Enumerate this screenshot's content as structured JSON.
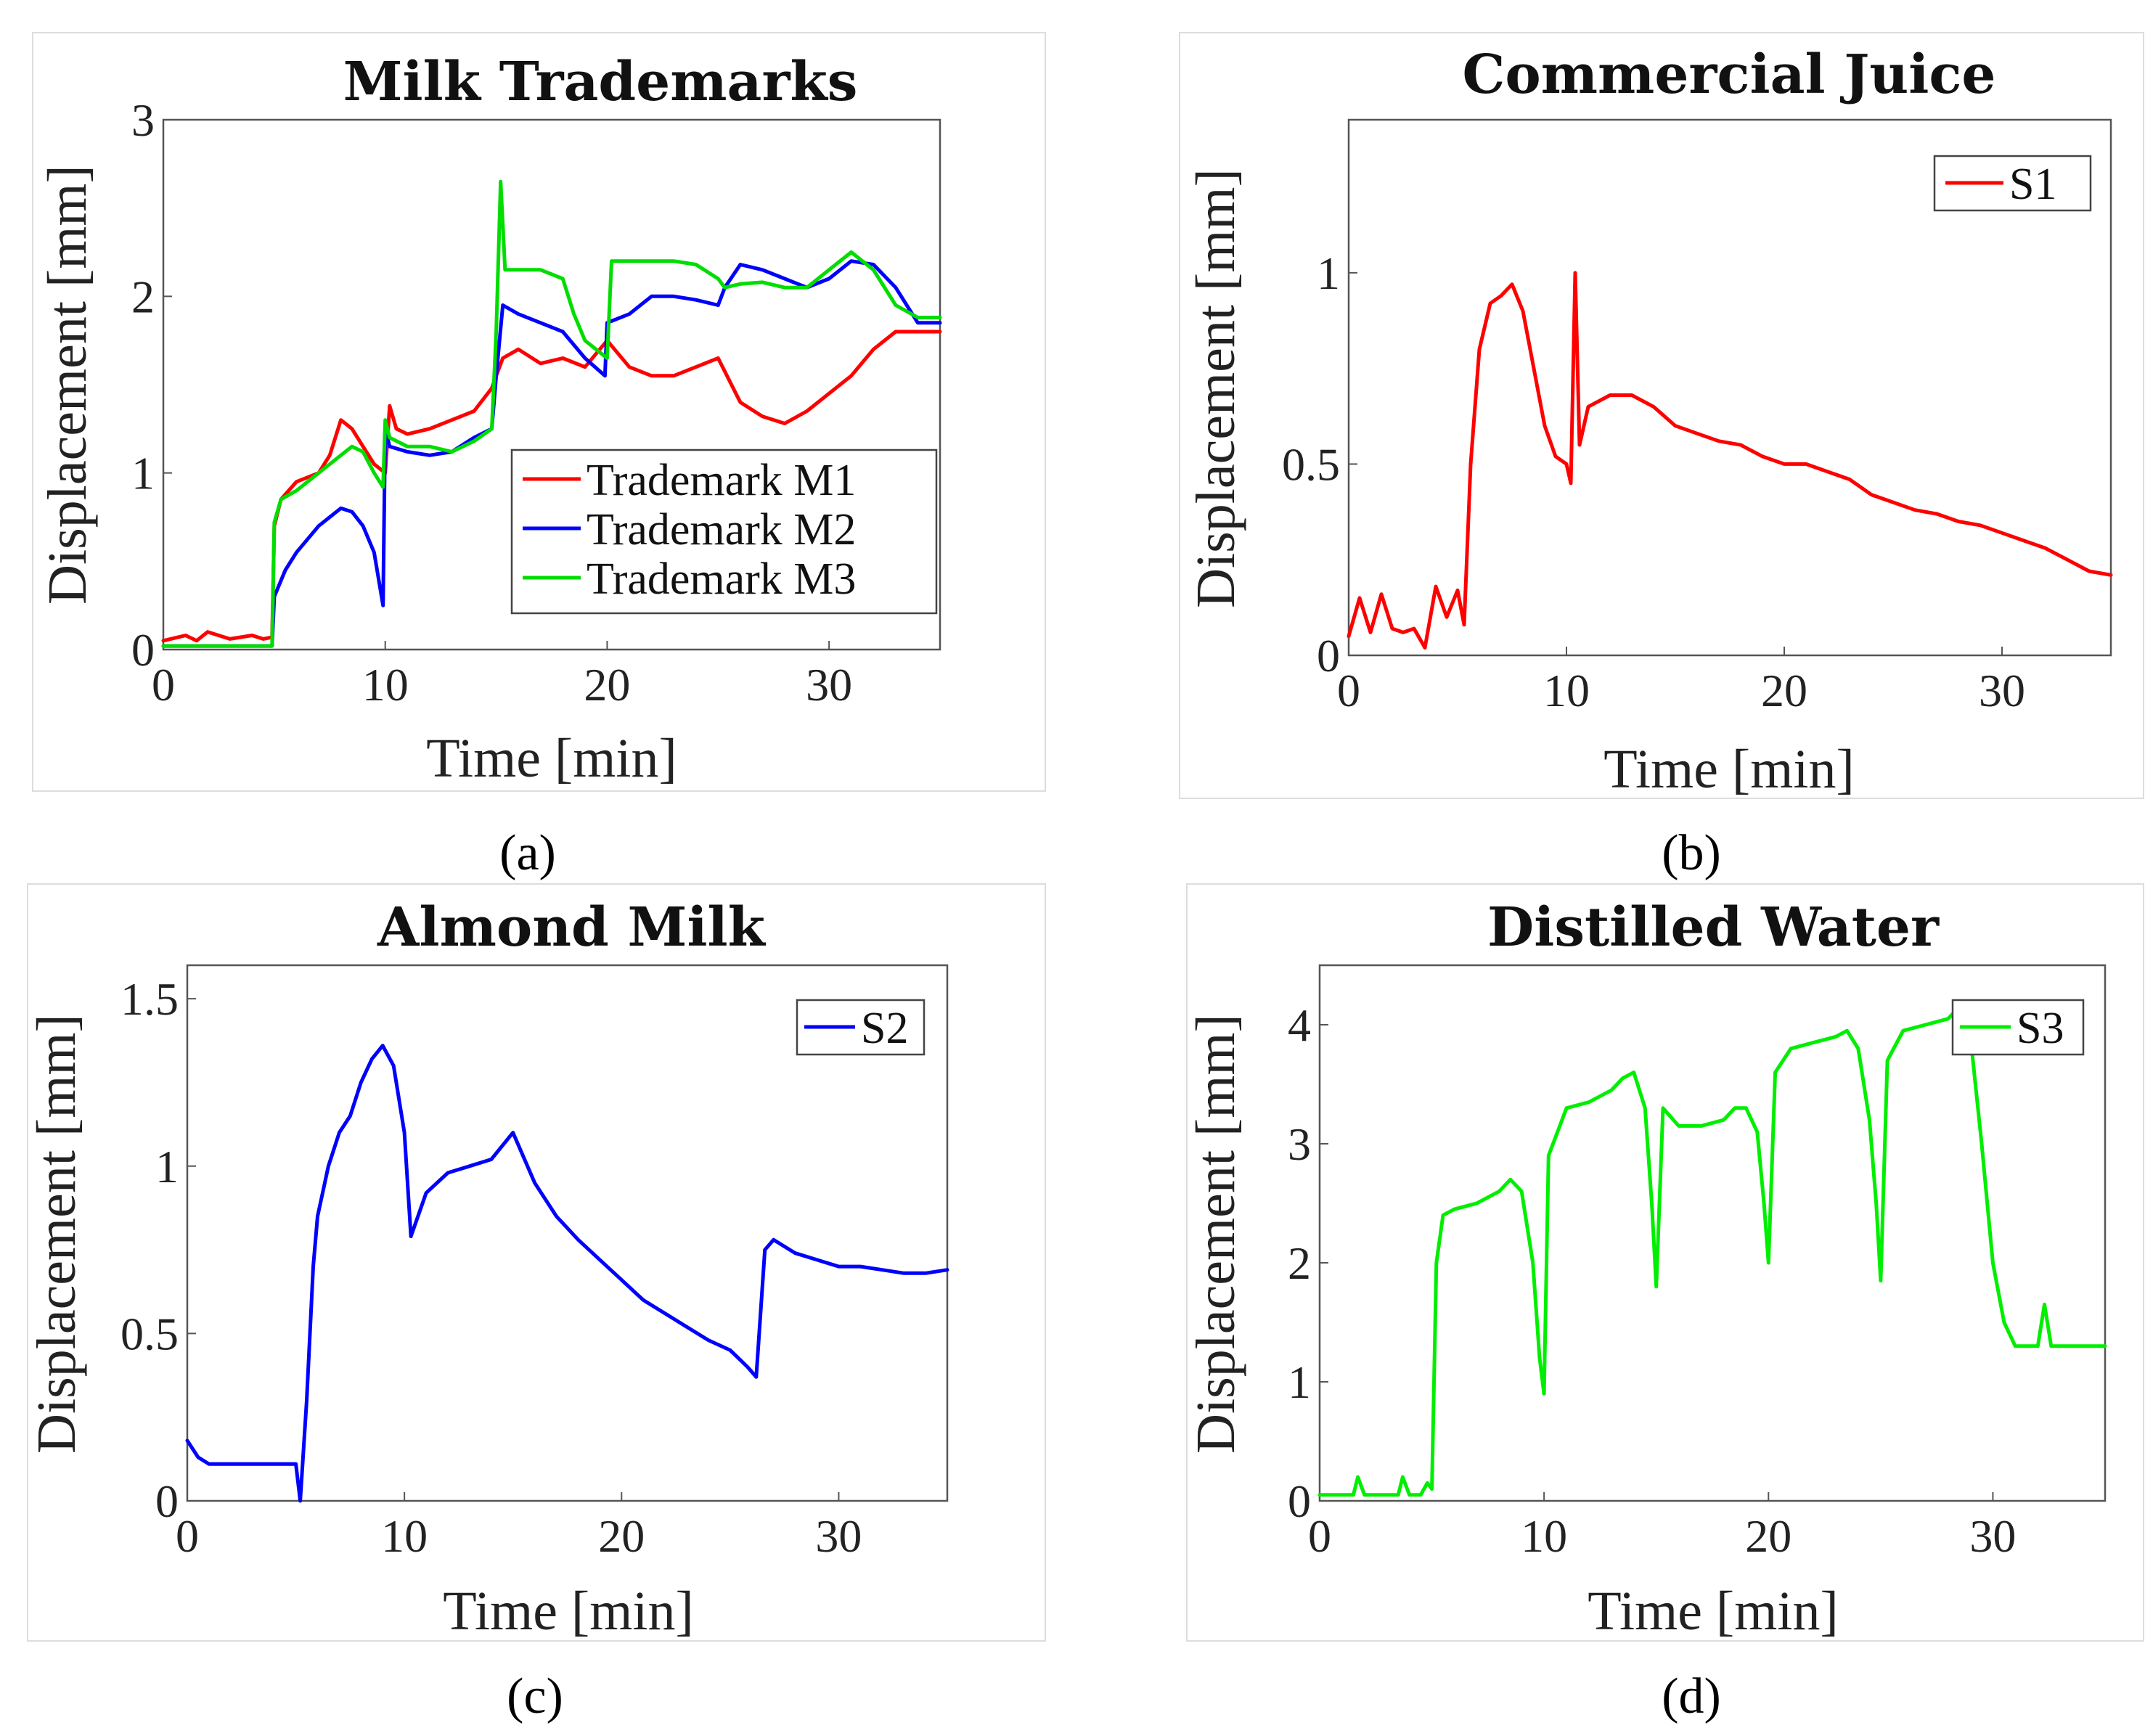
{
  "chart_data": [
    {
      "type": "line",
      "panel_label": "(a)",
      "title": "Milk Trademarks",
      "xlabel": "Time [min]",
      "ylabel": "Displacement [mm]",
      "xlim": [
        0,
        35
      ],
      "ylim": [
        0,
        3
      ],
      "xticks": [
        0,
        10,
        20,
        30
      ],
      "yticks": [
        0,
        1,
        2,
        3
      ],
      "legend": "bottom-right",
      "series": [
        {
          "name": "Trademark M1",
          "color": "#ff0000",
          "x": [
            0,
            1,
            1.5,
            2,
            3,
            4,
            4.5,
            4.9,
            5.0,
            5.3,
            6,
            7,
            7.5,
            8,
            8.5,
            9,
            9.5,
            10,
            10.2,
            10.5,
            11,
            12,
            13,
            14,
            14.8,
            15.0,
            15.3,
            16,
            17,
            18,
            19,
            20,
            21,
            22,
            23,
            24,
            25,
            26,
            27,
            28,
            29,
            30,
            31,
            32,
            33,
            34,
            35
          ],
          "y": [
            0.05,
            0.08,
            0.05,
            0.1,
            0.06,
            0.08,
            0.06,
            0.07,
            0.7,
            0.85,
            0.95,
            1.0,
            1.1,
            1.3,
            1.25,
            1.15,
            1.05,
            1.0,
            1.38,
            1.25,
            1.22,
            1.25,
            1.3,
            1.35,
            1.48,
            1.55,
            1.65,
            1.7,
            1.62,
            1.65,
            1.6,
            1.75,
            1.6,
            1.55,
            1.55,
            1.6,
            1.65,
            1.4,
            1.32,
            1.28,
            1.35,
            1.45,
            1.55,
            1.7,
            1.8,
            1.8,
            1.8
          ]
        },
        {
          "name": "Trademark M2",
          "color": "#0000ff",
          "x": [
            0,
            4.9,
            5.0,
            5.5,
            6,
            7,
            8,
            8.5,
            9,
            9.5,
            9.9,
            10.0,
            10.2,
            11,
            12,
            13,
            14,
            14.8,
            15.0,
            15.3,
            16,
            17,
            18,
            19,
            19.9,
            20.0,
            21,
            22,
            23,
            24,
            25,
            25.3,
            26,
            27,
            28,
            29,
            30,
            31,
            32,
            33,
            34,
            35
          ],
          "y": [
            0.02,
            0.02,
            0.3,
            0.45,
            0.55,
            0.7,
            0.8,
            0.78,
            0.7,
            0.55,
            0.25,
            1.25,
            1.15,
            1.12,
            1.1,
            1.12,
            1.2,
            1.25,
            1.55,
            1.95,
            1.9,
            1.85,
            1.8,
            1.65,
            1.55,
            1.85,
            1.9,
            2.0,
            2.0,
            1.98,
            1.95,
            2.05,
            2.18,
            2.15,
            2.1,
            2.05,
            2.1,
            2.2,
            2.18,
            2.05,
            1.85,
            1.85
          ]
        },
        {
          "name": "Trademark M3",
          "color": "#00dd00",
          "x": [
            0,
            4.9,
            5.0,
            5.3,
            6,
            7,
            8,
            8.5,
            9,
            9.5,
            9.9,
            10.0,
            10.2,
            11,
            12,
            13,
            14,
            14.8,
            15.0,
            15.2,
            15.4,
            16,
            17,
            18,
            18.5,
            19,
            20,
            20.2,
            21,
            22,
            23,
            24,
            25,
            25.3,
            26,
            27,
            28,
            29,
            30,
            31,
            32,
            33,
            34,
            35
          ],
          "y": [
            0.02,
            0.02,
            0.72,
            0.85,
            0.9,
            1.0,
            1.1,
            1.15,
            1.12,
            1.0,
            0.92,
            1.3,
            1.2,
            1.15,
            1.15,
            1.12,
            1.18,
            1.25,
            1.8,
            2.65,
            2.15,
            2.15,
            2.15,
            2.1,
            1.9,
            1.75,
            1.65,
            2.2,
            2.2,
            2.2,
            2.2,
            2.18,
            2.1,
            2.05,
            2.07,
            2.08,
            2.05,
            2.05,
            2.15,
            2.25,
            2.15,
            1.95,
            1.88,
            1.88
          ]
        }
      ]
    },
    {
      "type": "line",
      "panel_label": "(b)",
      "title": "Commercial Juice",
      "xlabel": "Time [min]",
      "ylabel": "Displacement [mm]",
      "xlim": [
        0,
        35
      ],
      "ylim": [
        0,
        1.4
      ],
      "xticks": [
        0,
        10,
        20,
        30
      ],
      "yticks": [
        0,
        0.5,
        1
      ],
      "ytick_labels": [
        "0",
        "0.5",
        "1"
      ],
      "legend": "top-right",
      "series": [
        {
          "name": "S1",
          "color": "#ff0000",
          "x": [
            0,
            0.5,
            1,
            1.5,
            2,
            2.5,
            3,
            3.5,
            4,
            4.5,
            5,
            5.3,
            5.6,
            6,
            6.5,
            7,
            7.5,
            8,
            8.5,
            9,
            9.5,
            10,
            10.2,
            10.4,
            10.6,
            11,
            12,
            13,
            14,
            15,
            16,
            17,
            18,
            19,
            20,
            21,
            22,
            23,
            24,
            25,
            26,
            27,
            28,
            29,
            30,
            31,
            32,
            33,
            34,
            35
          ],
          "y": [
            0.05,
            0.15,
            0.06,
            0.16,
            0.07,
            0.06,
            0.07,
            0.02,
            0.18,
            0.1,
            0.17,
            0.08,
            0.5,
            0.8,
            0.92,
            0.94,
            0.97,
            0.9,
            0.75,
            0.6,
            0.52,
            0.5,
            0.45,
            1.0,
            0.55,
            0.65,
            0.68,
            0.68,
            0.65,
            0.6,
            0.58,
            0.56,
            0.55,
            0.52,
            0.5,
            0.5,
            0.48,
            0.46,
            0.42,
            0.4,
            0.38,
            0.37,
            0.35,
            0.34,
            0.32,
            0.3,
            0.28,
            0.25,
            0.22,
            0.21
          ]
        }
      ]
    },
    {
      "type": "line",
      "panel_label": "(c)",
      "title": "Almond Milk",
      "xlabel": "Time [min]",
      "ylabel": "Displacement [mm]",
      "xlim": [
        0,
        35
      ],
      "ylim": [
        0,
        1.6
      ],
      "xticks": [
        0,
        10,
        20,
        30
      ],
      "yticks": [
        0,
        0.5,
        1,
        1.5
      ],
      "ytick_labels": [
        "0",
        "0.5",
        "1",
        "1.5"
      ],
      "legend": "top-right",
      "series": [
        {
          "name": "S2",
          "color": "#0000ff",
          "x": [
            0,
            0.5,
            1,
            2,
            3,
            4,
            5,
            5.2,
            5.5,
            5.8,
            6,
            6.5,
            7,
            7.5,
            8,
            8.5,
            9,
            9.5,
            10,
            10.3,
            11,
            12,
            13,
            14,
            15,
            16,
            17,
            18,
            19,
            20,
            21,
            22,
            23,
            24,
            25,
            25.8,
            26.2,
            26.6,
            27,
            28,
            29,
            30,
            31,
            32,
            33,
            34,
            35
          ],
          "y": [
            0.18,
            0.13,
            0.11,
            0.11,
            0.11,
            0.11,
            0.11,
            0.0,
            0.3,
            0.7,
            0.85,
            1.0,
            1.1,
            1.15,
            1.25,
            1.32,
            1.36,
            1.3,
            1.1,
            0.79,
            0.92,
            0.98,
            1.0,
            1.02,
            1.1,
            0.95,
            0.85,
            0.78,
            0.72,
            0.66,
            0.6,
            0.56,
            0.52,
            0.48,
            0.45,
            0.4,
            0.37,
            0.75,
            0.78,
            0.74,
            0.72,
            0.7,
            0.7,
            0.69,
            0.68,
            0.68,
            0.69
          ]
        }
      ]
    },
    {
      "type": "line",
      "panel_label": "(d)",
      "title": "Distilled Water",
      "xlabel": "Time [min]",
      "ylabel": "Displacement [mm]",
      "xlim": [
        0,
        35
      ],
      "ylim": [
        0,
        4.5
      ],
      "xticks": [
        0,
        10,
        20,
        30
      ],
      "yticks": [
        0,
        1,
        2,
        3,
        4
      ],
      "legend": "top-right",
      "series": [
        {
          "name": "S3",
          "color": "#00ee00",
          "x": [
            0,
            1,
            1.5,
            1.7,
            2,
            3,
            3.5,
            3.7,
            4,
            4.5,
            4.8,
            5.0,
            5.2,
            5.5,
            6,
            7,
            8,
            8.5,
            9,
            9.5,
            9.8,
            10.0,
            10.2,
            11,
            12,
            13,
            13.5,
            14,
            14.5,
            14.8,
            15.0,
            15.3,
            16,
            17,
            18,
            18.5,
            19,
            19.5,
            19.8,
            20.0,
            20.3,
            21,
            22,
            23,
            23.5,
            24,
            24.5,
            24.8,
            25.0,
            25.3,
            26,
            27,
            28,
            28.5,
            29,
            29.5,
            30,
            30.5,
            31,
            32,
            32.3,
            32.6,
            33,
            34,
            35
          ],
          "y": [
            0.05,
            0.05,
            0.05,
            0.2,
            0.05,
            0.05,
            0.05,
            0.2,
            0.05,
            0.05,
            0.15,
            0.1,
            2.0,
            2.4,
            2.45,
            2.5,
            2.6,
            2.7,
            2.6,
            2.0,
            1.2,
            0.9,
            2.9,
            3.3,
            3.35,
            3.45,
            3.55,
            3.6,
            3.3,
            2.5,
            1.8,
            3.3,
            3.15,
            3.15,
            3.2,
            3.3,
            3.3,
            3.1,
            2.5,
            2.0,
            3.6,
            3.8,
            3.85,
            3.9,
            3.95,
            3.8,
            3.2,
            2.5,
            1.85,
            3.7,
            3.95,
            4.0,
            4.05,
            4.15,
            3.9,
            3.0,
            2.0,
            1.5,
            1.3,
            1.3,
            1.65,
            1.3,
            1.3,
            1.3,
            1.3
          ]
        }
      ]
    }
  ]
}
